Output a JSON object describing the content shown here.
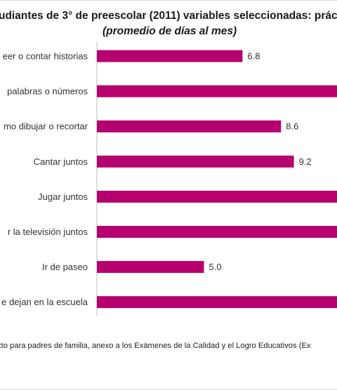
{
  "chart_data": {
    "type": "bar",
    "orientation": "horizontal",
    "title": "udiantes de 3° de preescolar  (2011) variables seleccionadas: prác",
    "subtitle": "(promedio de días al mes)",
    "categories": [
      "eer o contar historias",
      "palabras o números",
      "mo dibujar o recortar",
      "Cantar juntos",
      "Jugar juntos",
      "r la televisión juntos",
      "Ir de paseo",
      "e dejan en la escuela"
    ],
    "values": [
      6.8,
      12.0,
      8.6,
      9.2,
      12.0,
      12.0,
      5.0,
      12.0
    ],
    "data_labels": [
      "6.8",
      "",
      "8.6",
      "9.2",
      "",
      "",
      "5.0",
      ""
    ],
    "bar_color": "#b5006e",
    "xlabel": "",
    "ylabel": "",
    "grid": false,
    "legend": "none"
  },
  "source_note": "xto para padres de familia, anexo a los Exámenes de la Calidad y el Logro Educativos (Ex"
}
